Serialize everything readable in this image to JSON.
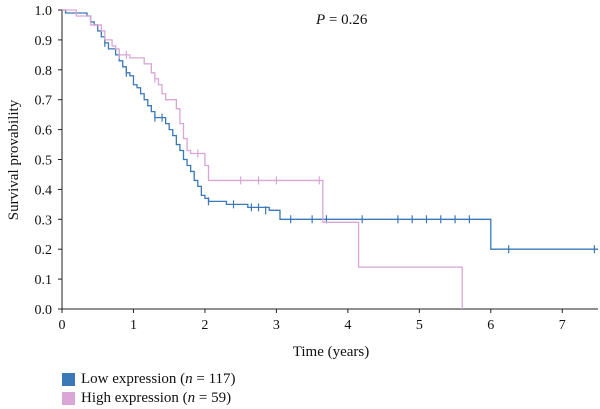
{
  "chart_data": {
    "type": "line",
    "subtype": "kaplan-meier",
    "annotation_prefix": "P",
    "annotation_value": " = 0.26",
    "xlabel": "Time (years)",
    "ylabel": "Survival provability",
    "xlim": [
      0,
      7.5
    ],
    "ylim": [
      0,
      1
    ],
    "xticks": [
      "0",
      "1",
      "2",
      "3",
      "4",
      "5",
      "6",
      "7"
    ],
    "yticks": [
      "0.0",
      "0.1",
      "0.2",
      "0.3",
      "0.4",
      "0.5",
      "0.6",
      "0.7",
      "0.8",
      "0.9",
      "1.0"
    ],
    "grid": false,
    "legend_position": "bottom-left",
    "series": [
      {
        "name": "Low expression",
        "legend_prefix": "Low expression (",
        "legend_n_symbol": "n",
        "legend_suffix": " = 117)",
        "color": "#3a78b8",
        "steps": [
          [
            0,
            1.0
          ],
          [
            0.05,
            0.99
          ],
          [
            0.35,
            0.98
          ],
          [
            0.4,
            0.96
          ],
          [
            0.45,
            0.95
          ],
          [
            0.5,
            0.93
          ],
          [
            0.55,
            0.91
          ],
          [
            0.6,
            0.89
          ],
          [
            0.65,
            0.87
          ],
          [
            0.75,
            0.85
          ],
          [
            0.8,
            0.83
          ],
          [
            0.85,
            0.81
          ],
          [
            0.9,
            0.79
          ],
          [
            0.95,
            0.78
          ],
          [
            1.0,
            0.75
          ],
          [
            1.05,
            0.74
          ],
          [
            1.1,
            0.72
          ],
          [
            1.15,
            0.7
          ],
          [
            1.2,
            0.68
          ],
          [
            1.25,
            0.66
          ],
          [
            1.3,
            0.64
          ],
          [
            1.45,
            0.62
          ],
          [
            1.5,
            0.6
          ],
          [
            1.55,
            0.58
          ],
          [
            1.6,
            0.55
          ],
          [
            1.65,
            0.53
          ],
          [
            1.7,
            0.5
          ],
          [
            1.75,
            0.48
          ],
          [
            1.8,
            0.46
          ],
          [
            1.85,
            0.43
          ],
          [
            1.9,
            0.41
          ],
          [
            1.95,
            0.38
          ],
          [
            2.0,
            0.37
          ],
          [
            2.05,
            0.36
          ],
          [
            2.3,
            0.35
          ],
          [
            2.6,
            0.34
          ],
          [
            2.9,
            0.33
          ],
          [
            3.05,
            0.3
          ],
          [
            4.4,
            0.3
          ],
          [
            6.0,
            0.2
          ],
          [
            7.5,
            0.2
          ]
        ],
        "censors": [
          [
            0.6,
            0.89
          ],
          [
            0.9,
            0.79
          ],
          [
            1.3,
            0.64
          ],
          [
            1.4,
            0.64
          ],
          [
            2.05,
            0.36
          ],
          [
            2.4,
            0.35
          ],
          [
            2.65,
            0.34
          ],
          [
            2.75,
            0.34
          ],
          [
            2.85,
            0.33
          ],
          [
            3.2,
            0.3
          ],
          [
            3.5,
            0.3
          ],
          [
            3.7,
            0.3
          ],
          [
            4.2,
            0.3
          ],
          [
            4.7,
            0.3
          ],
          [
            4.9,
            0.3
          ],
          [
            5.1,
            0.3
          ],
          [
            5.3,
            0.3
          ],
          [
            5.5,
            0.3
          ],
          [
            5.7,
            0.3
          ],
          [
            6.25,
            0.2
          ],
          [
            7.45,
            0.2
          ]
        ]
      },
      {
        "name": "High expression",
        "legend_prefix": "High expression (",
        "legend_n_symbol": "n",
        "legend_suffix": " = 59)",
        "color": "#d9a6d6",
        "steps": [
          [
            0,
            1.0
          ],
          [
            0.2,
            0.98
          ],
          [
            0.4,
            0.95
          ],
          [
            0.55,
            0.93
          ],
          [
            0.6,
            0.9
          ],
          [
            0.7,
            0.88
          ],
          [
            0.75,
            0.87
          ],
          [
            0.8,
            0.85
          ],
          [
            0.95,
            0.84
          ],
          [
            1.15,
            0.82
          ],
          [
            1.25,
            0.79
          ],
          [
            1.3,
            0.77
          ],
          [
            1.35,
            0.75
          ],
          [
            1.4,
            0.72
          ],
          [
            1.45,
            0.7
          ],
          [
            1.6,
            0.67
          ],
          [
            1.65,
            0.62
          ],
          [
            1.7,
            0.57
          ],
          [
            1.75,
            0.53
          ],
          [
            1.8,
            0.52
          ],
          [
            2.0,
            0.48
          ],
          [
            2.05,
            0.43
          ],
          [
            3.65,
            0.29
          ],
          [
            4.15,
            0.14
          ],
          [
            5.6,
            0.0
          ]
        ],
        "censors": [
          [
            0.8,
            0.85
          ],
          [
            0.9,
            0.85
          ],
          [
            1.3,
            0.77
          ],
          [
            1.9,
            0.52
          ],
          [
            2.5,
            0.43
          ],
          [
            2.75,
            0.43
          ],
          [
            3.0,
            0.43
          ],
          [
            3.6,
            0.43
          ]
        ]
      }
    ]
  }
}
